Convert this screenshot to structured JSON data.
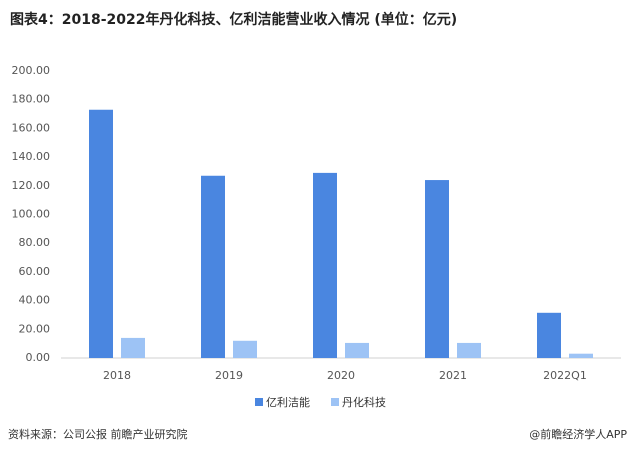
{
  "chart_data": {
    "type": "bar",
    "title": "图表4：2018-2022年丹化科技、亿利洁能营业收入情况 (单位：亿元)",
    "categories": [
      "2018",
      "2019",
      "2020",
      "2021",
      "2022Q1"
    ],
    "series": [
      {
        "name": "亿利洁能",
        "color": "#4a86e0",
        "values": [
          173,
          127,
          129,
          124,
          31.5
        ]
      },
      {
        "name": "丹化科技",
        "color": "#9dc3f5",
        "values": [
          14,
          12,
          10.5,
          10.5,
          3
        ]
      }
    ],
    "ylim": [
      0,
      200
    ],
    "yticks": [
      {
        "value": 0,
        "label": "0.00"
      },
      {
        "value": 20,
        "label": "20.00"
      },
      {
        "value": 40,
        "label": "40.00"
      },
      {
        "value": 60,
        "label": "60.00"
      },
      {
        "value": 80,
        "label": "80.00"
      },
      {
        "value": 100,
        "label": "100.00"
      },
      {
        "value": 120,
        "label": "120.00"
      },
      {
        "value": 140,
        "label": "140.00"
      },
      {
        "value": 160,
        "label": "160.00"
      },
      {
        "value": 180,
        "label": "180.00"
      },
      {
        "value": 200,
        "label": "200.00"
      }
    ],
    "grid": false,
    "legend": "bottom",
    "source": "资料来源：公司公报 前瞻产业研究院",
    "credit": "@前瞻经济学人APP"
  }
}
